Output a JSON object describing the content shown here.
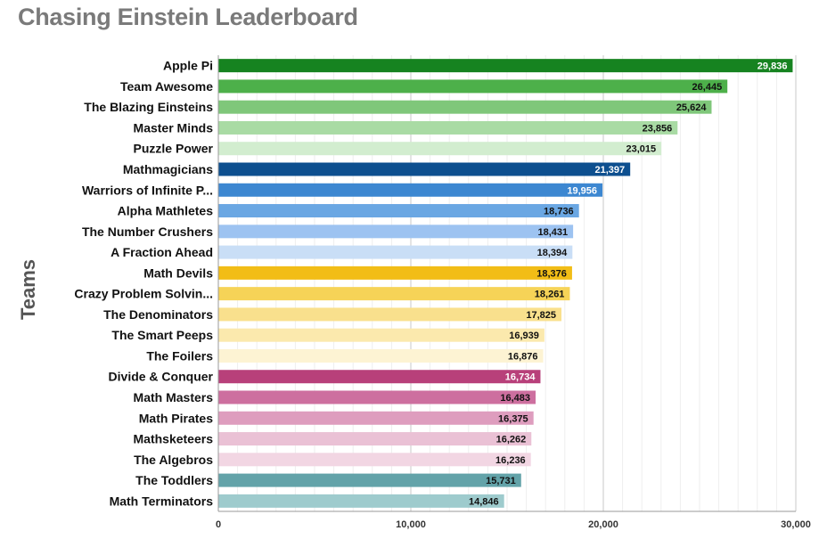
{
  "chart_data": {
    "type": "bar",
    "orientation": "horizontal",
    "title": "Chasing Einstein Leaderboard",
    "xlabel": "",
    "ylabel": "Teams",
    "xlim": [
      0,
      30000
    ],
    "x_ticks": [
      "0",
      "10,000",
      "20,000",
      "30,000"
    ],
    "grid": true,
    "categories": [
      "Apple Pi",
      "Team Awesome",
      "The Blazing Einsteins",
      "Master Minds",
      "Puzzle Power",
      "Mathmagicians",
      "Warriors of Infinite P...",
      "Alpha Mathletes",
      "The Number Crushers",
      "A Fraction Ahead",
      "Math Devils",
      "Crazy Problem Solvin...",
      "The Denominators",
      "The Smart Peeps",
      "The Foilers",
      "Divide & Conquer",
      "Math Masters",
      "Math Pirates",
      "Mathsketeers",
      "The Algebros",
      "The Toddlers",
      "Math Terminators"
    ],
    "values": [
      29836,
      26445,
      25624,
      23856,
      23015,
      21397,
      19956,
      18736,
      18431,
      18394,
      18376,
      18261,
      17825,
      16939,
      16876,
      16734,
      16483,
      16375,
      16262,
      16236,
      15731,
      14846
    ],
    "value_labels": [
      "29,836",
      "26,445",
      "25,624",
      "23,856",
      "23,015",
      "21,397",
      "19,956",
      "18,736",
      "18,431",
      "18,394",
      "18,376",
      "18,261",
      "17,825",
      "16,939",
      "16,876",
      "16,734",
      "16,483",
      "16,375",
      "16,262",
      "16,236",
      "15,731",
      "14,846"
    ],
    "colors": [
      "#168320",
      "#4db04a",
      "#7fc77a",
      "#a9dba4",
      "#d2edcf",
      "#0d4f8f",
      "#3c87d1",
      "#6aa7e3",
      "#9dc3f1",
      "#c9def6",
      "#f2bd16",
      "#f6d357",
      "#f9e08d",
      "#fbe9ad",
      "#fdf3d3",
      "#b8407a",
      "#cd6f9f",
      "#de9dbe",
      "#eac1d5",
      "#f2d6e3",
      "#63a3a9",
      "#9ecbcd"
    ],
    "label_colors": [
      "#ffffff",
      "#111111",
      "#111111",
      "#111111",
      "#111111",
      "#ffffff",
      "#ffffff",
      "#111111",
      "#111111",
      "#111111",
      "#111111",
      "#111111",
      "#111111",
      "#111111",
      "#111111",
      "#ffffff",
      "#111111",
      "#111111",
      "#111111",
      "#111111",
      "#111111",
      "#111111"
    ]
  }
}
